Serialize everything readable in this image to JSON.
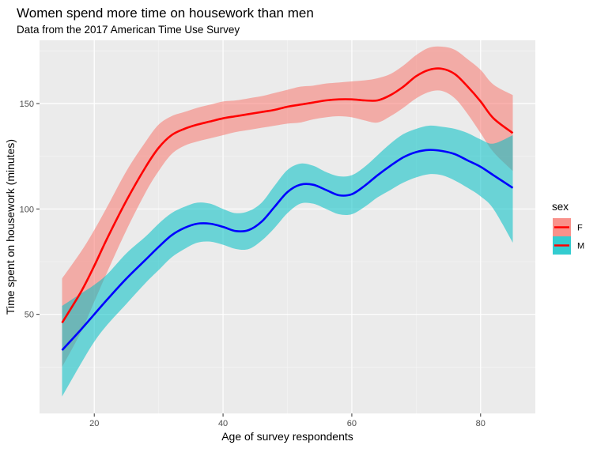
{
  "chart_data": {
    "type": "line",
    "title": "Women spend more time on housework than men",
    "subtitle": "Data from the 2017 American Time Use Survey",
    "xlabel": "Age of survey respondents",
    "ylabel": "Time spent on housework (minutes)",
    "xlim": [
      11.5,
      88.5
    ],
    "ylim": [
      3,
      180
    ],
    "x_ticks": [
      20,
      40,
      60,
      80
    ],
    "y_ticks": [
      50,
      100,
      150
    ],
    "x_tick_labels": [
      "20",
      "40",
      "60",
      "80"
    ],
    "y_tick_labels": [
      "50",
      "100",
      "150"
    ],
    "grid": true,
    "legend": {
      "title": "sex",
      "placement": "right",
      "entries": [
        "F",
        "M"
      ]
    },
    "series": [
      {
        "name": "F",
        "line_color": "#ff0000",
        "band_color": "#f8766d",
        "x": [
          15,
          18,
          20,
          22,
          25,
          28,
          30,
          32,
          34,
          36,
          38,
          40,
          42,
          44,
          46,
          48,
          50,
          52,
          54,
          56,
          58,
          60,
          62,
          64,
          66,
          68,
          70,
          72,
          74,
          76,
          78,
          80,
          82,
          85
        ],
        "y": [
          46,
          61,
          73,
          86,
          104,
          120,
          129,
          135,
          138,
          140,
          141.5,
          143,
          144,
          145,
          146,
          147,
          148.5,
          149.5,
          150.5,
          151.5,
          152,
          152,
          151.5,
          151.5,
          154,
          158,
          163,
          166,
          166.5,
          164,
          158,
          151,
          143,
          136
        ],
        "lower": [
          25,
          42,
          56,
          70,
          90,
          108,
          118,
          126,
          130,
          132,
          133.5,
          135,
          136.5,
          137.5,
          138.5,
          139.5,
          140.5,
          141,
          142.5,
          143.5,
          144,
          143.5,
          142,
          141,
          144,
          148,
          152.5,
          155.5,
          156,
          152.5,
          145,
          136,
          127,
          118
        ],
        "upper": [
          67,
          80,
          90,
          101,
          118,
          132,
          140,
          144,
          146,
          148,
          149.5,
          151,
          151.5,
          152.5,
          153.5,
          155,
          156.5,
          158,
          158.5,
          159.5,
          160,
          160.5,
          161,
          162,
          164,
          168,
          173,
          176.5,
          177,
          175.5,
          171,
          166,
          159,
          154
        ]
      },
      {
        "name": "M",
        "line_color": "#0000ff",
        "band_color": "#00bfc4",
        "x": [
          15,
          18,
          20,
          22,
          25,
          28,
          30,
          32,
          34,
          36,
          38,
          40,
          42,
          44,
          46,
          48,
          50,
          52,
          54,
          56,
          58,
          60,
          62,
          64,
          66,
          68,
          70,
          72,
          74,
          76,
          78,
          80,
          82,
          85
        ],
        "y": [
          33,
          43,
          50,
          57,
          67,
          76,
          82,
          87.5,
          91,
          93,
          93,
          91.5,
          89.5,
          90,
          94,
          101,
          108,
          111.5,
          111.5,
          109,
          106.5,
          107,
          111,
          116,
          120.5,
          124.5,
          127,
          128,
          127.5,
          126,
          123,
          120,
          116,
          110
        ],
        "lower": [
          11,
          27,
          37,
          45,
          55,
          65,
          71,
          77,
          81,
          84,
          84.5,
          83,
          81,
          81,
          85,
          91,
          98,
          102.5,
          102.5,
          100,
          97.5,
          97.5,
          101,
          105.5,
          109,
          112.5,
          115,
          116.5,
          116,
          113.5,
          110,
          106,
          100,
          84
        ],
        "upper": [
          54,
          60,
          64,
          69,
          79,
          87,
          93,
          98,
          101,
          103,
          102.5,
          100,
          98,
          99,
          103,
          111,
          118.5,
          121.5,
          120.5,
          117.5,
          115.5,
          116,
          120,
          125.5,
          131,
          135.5,
          138,
          139.5,
          139,
          138,
          136,
          133,
          131,
          135
        ]
      }
    ]
  }
}
